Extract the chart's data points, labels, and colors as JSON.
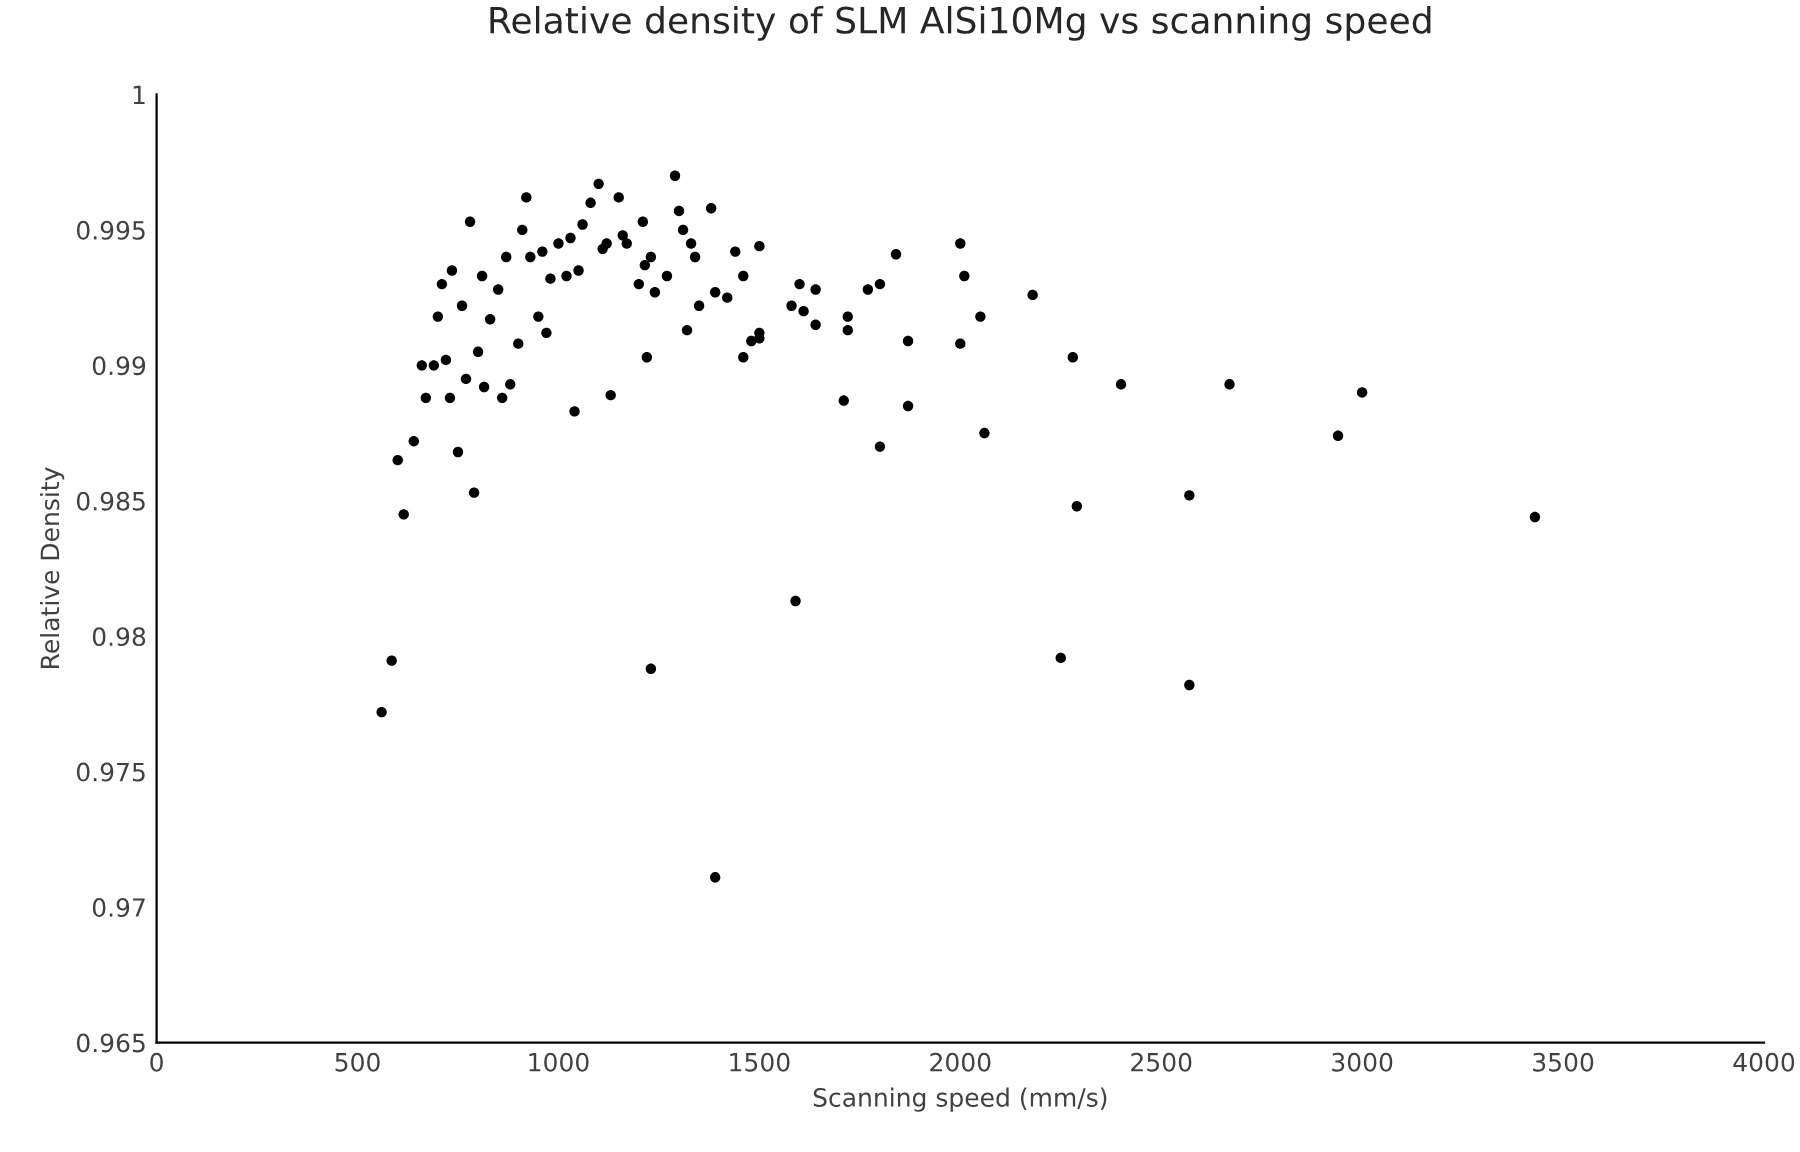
{
  "chart_data": {
    "type": "scatter",
    "title": "Relative density of SLM AlSi10Mg vs scanning speed",
    "xlabel": "Scanning speed (mm/s)",
    "ylabel": "Relative Density",
    "marker": "circle",
    "grid": false,
    "legend": false,
    "xlim": [
      0,
      4000
    ],
    "xticks": [
      0,
      500,
      1000,
      1500,
      2000,
      2500,
      3000,
      3500,
      4000
    ],
    "ylim": [
      0.965,
      1
    ],
    "yticks": [
      0.965,
      0.97,
      0.975,
      0.98,
      0.985,
      0.99,
      0.995,
      1
    ],
    "series": [
      {
        "color": "#000000",
        "x": [
          560,
          585,
          600,
          615,
          640,
          660,
          670,
          690,
          700,
          710,
          720,
          730,
          735,
          750,
          760,
          770,
          780,
          790,
          800,
          810,
          815,
          830,
          850,
          860,
          870,
          880,
          900,
          910,
          920,
          930,
          950,
          960,
          970,
          980,
          1000,
          1020,
          1030,
          1040,
          1050,
          1060,
          1080,
          1100,
          1110,
          1120,
          1130,
          1150,
          1160,
          1170,
          1200,
          1210,
          1215,
          1220,
          1230,
          1240,
          1230,
          1270,
          1290,
          1300,
          1310,
          1320,
          1330,
          1340,
          1350,
          1380,
          1390,
          1390,
          1420,
          1440,
          1460,
          1460,
          1480,
          1500,
          1500,
          1500,
          1580,
          1590,
          1600,
          1610,
          1640,
          1640,
          1710,
          1720,
          1720,
          1770,
          1800,
          1800,
          1840,
          1870,
          1870,
          2000,
          2000,
          2010,
          2050,
          2060,
          2180,
          2250,
          2280,
          2290,
          2400,
          2570,
          2570,
          2670,
          2940,
          3000,
          3430
        ],
        "values": [
          0.9772,
          0.9791,
          0.9865,
          0.9845,
          0.9872,
          0.99,
          0.9888,
          0.99,
          0.9918,
          0.993,
          0.9902,
          0.9888,
          0.9935,
          0.9868,
          0.9922,
          0.9895,
          0.9953,
          0.9853,
          0.9905,
          0.9933,
          0.9892,
          0.9917,
          0.9928,
          0.9888,
          0.994,
          0.9893,
          0.9908,
          0.995,
          0.9962,
          0.994,
          0.9918,
          0.9942,
          0.9912,
          0.9932,
          0.9945,
          0.9933,
          0.9947,
          0.9883,
          0.9935,
          0.9952,
          0.996,
          0.9967,
          0.9943,
          0.9945,
          0.9889,
          0.9962,
          0.9948,
          0.9945,
          0.993,
          0.9953,
          0.9937,
          0.9903,
          0.994,
          0.9927,
          0.9788,
          0.9933,
          0.997,
          0.9957,
          0.995,
          0.9913,
          0.9945,
          0.994,
          0.9922,
          0.9958,
          0.9711,
          0.9927,
          0.9925,
          0.9942,
          0.9933,
          0.9903,
          0.9909,
          0.9944,
          0.9912,
          0.991,
          0.9922,
          0.9813,
          0.993,
          0.992,
          0.9928,
          0.9915,
          0.9887,
          0.9918,
          0.9913,
          0.9928,
          0.987,
          0.993,
          0.9941,
          0.9885,
          0.9909,
          0.9945,
          0.9908,
          0.9933,
          0.9918,
          0.9875,
          0.9926,
          0.9792,
          0.9903,
          0.9848,
          0.9893,
          0.9852,
          0.9782,
          0.9893,
          0.9874,
          0.989,
          0.9844
        ]
      }
    ]
  }
}
